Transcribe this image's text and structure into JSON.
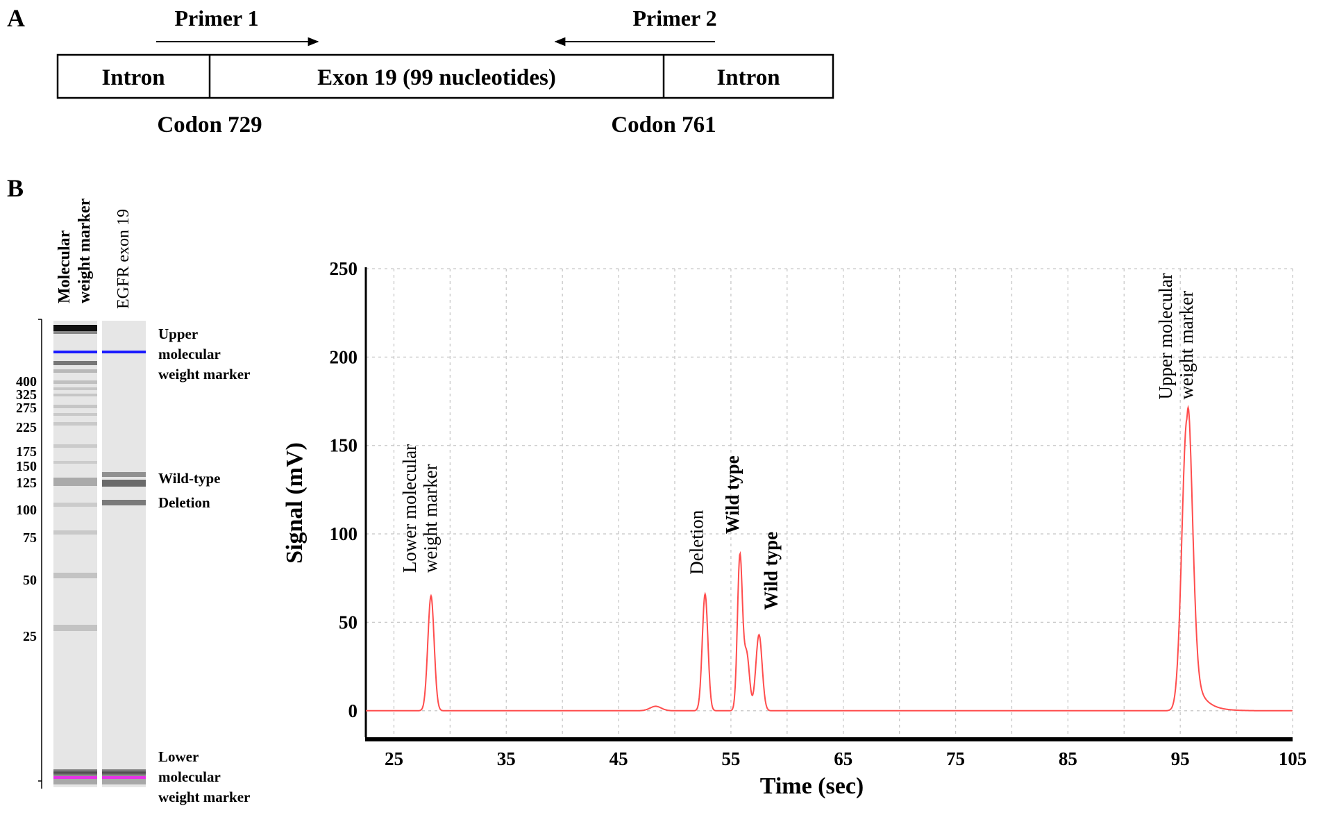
{
  "panel_a": {
    "letter": "A",
    "primer1": "Primer 1",
    "primer2": "Primer 2",
    "segments": [
      "Intron",
      "Exon 19 (99 nucleotides)",
      "Intron"
    ],
    "codon_left": "Codon 729",
    "codon_right": "Codon 761"
  },
  "panel_b": {
    "letter": "B",
    "gel": {
      "lanes": [
        {
          "title_lines": [
            "Molecular",
            "weight marker"
          ]
        },
        {
          "title_lines": [
            "EGFR exon 19"
          ]
        }
      ],
      "size_labels": [
        "400",
        "325",
        "275",
        "225",
        "175",
        "150",
        "125",
        "100",
        "75",
        "50",
        "25"
      ],
      "right_labels": {
        "upper": [
          "Upper",
          "molecular",
          "weight marker"
        ],
        "wild_type": "Wild-type",
        "deletion": "Deletion",
        "lower": [
          "Lower",
          "molecular",
          "weight marker"
        ]
      },
      "colors": {
        "upper_marker": "#1a1aff",
        "lower_marker": "#e633e6"
      }
    }
  },
  "chart_data": {
    "type": "line",
    "title": "",
    "xlabel": "Time (sec)",
    "ylabel": "Signal (mV)",
    "xlim": [
      22.5,
      105
    ],
    "ylim": [
      -15,
      250
    ],
    "x_ticks": [
      25,
      35,
      45,
      55,
      65,
      75,
      85,
      95,
      105
    ],
    "y_ticks": [
      0,
      50,
      100,
      150,
      200,
      250
    ],
    "grid": true,
    "line_color": "#ff4d4d",
    "peaks": [
      {
        "x": 28.3,
        "y": 65,
        "sigma": 0.28
      },
      {
        "x": 48.3,
        "y": 2.5,
        "sigma": 0.5
      },
      {
        "x": 52.7,
        "y": 66,
        "sigma": 0.25
      },
      {
        "x": 55.8,
        "y": 87,
        "sigma": 0.22
      },
      {
        "x": 56.4,
        "y": 32,
        "sigma": 0.25
      },
      {
        "x": 57.5,
        "y": 43,
        "sigma": 0.28
      },
      {
        "x": 95.6,
        "y": 165,
        "sigma": 0.45
      }
    ],
    "annotations": [
      {
        "lines": [
          "Lower molecular",
          "weight marker"
        ],
        "x": 28.8,
        "y": 78
      },
      {
        "lines": [
          "Deletion"
        ],
        "x": 52.5,
        "y": 77
      },
      {
        "lines": [
          "Wild  type"
        ],
        "x": 55.7,
        "y": 100
      },
      {
        "lines": [
          "Wild  type"
        ],
        "x": 59.1,
        "y": 57
      },
      {
        "lines": [
          "Upper molecular",
          "weight marker"
        ],
        "x": 96.1,
        "y": 176
      }
    ]
  }
}
